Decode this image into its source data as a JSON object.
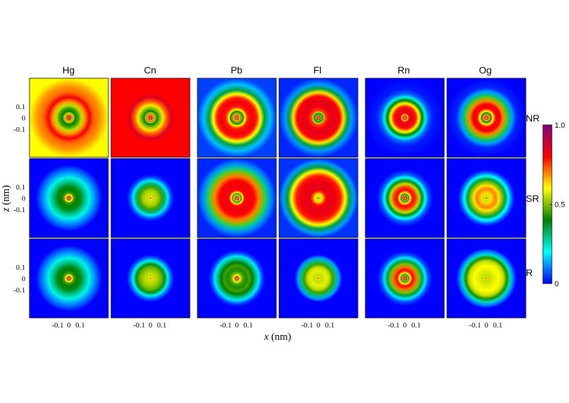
{
  "chart_data": {
    "type": "heatmap",
    "colormap": [
      "#0000ff",
      "#00ffff",
      "#008000",
      "#ffff00",
      "#ff0000",
      "#800080"
    ],
    "columns": [
      "Hg",
      "Cn",
      "Pb",
      "Fl",
      "Rn",
      "Og"
    ],
    "rows": [
      "NR",
      "SR",
      "R"
    ],
    "xlabel_var": "x",
    "xlabel_unit": " (nm)",
    "ylabel_var": "z",
    "ylabel_unit": " (nm)",
    "x_ticks": [
      "-0.1",
      "0",
      "0.1"
    ],
    "y_ticks": [
      "0.1",
      "0",
      "-0.1"
    ],
    "x_tick_values": [
      -0.1,
      0,
      0.1
    ],
    "y_tick_values": [
      0.1,
      0,
      -0.1
    ],
    "xlim": [
      -0.35,
      0.35
    ],
    "ylim": [
      -0.35,
      0.35
    ],
    "colorbar": {
      "min": 0,
      "max": 1,
      "ticks": [
        "1.0",
        "0.5",
        "0"
      ],
      "tick_values": [
        1.0,
        0.5,
        0
      ]
    },
    "panels": [
      {
        "element": "Hg",
        "method": "NR",
        "profile": [
          [
            0,
            0.55
          ],
          [
            0.01,
            0.8
          ],
          [
            0.015,
            0.7
          ],
          [
            0.025,
            0.95
          ],
          [
            0.035,
            0.55
          ],
          [
            0.045,
            0.7
          ],
          [
            0.06,
            0.55
          ],
          [
            0.08,
            0.4
          ],
          [
            0.12,
            0.45
          ],
          [
            0.16,
            0.55
          ],
          [
            0.2,
            0.68
          ],
          [
            0.26,
            0.82
          ],
          [
            0.32,
            0.72
          ],
          [
            0.4,
            0.68
          ],
          [
            0.5,
            0.6
          ]
        ]
      },
      {
        "element": "Cn",
        "method": "NR",
        "profile": [
          [
            0,
            0.55
          ],
          [
            0.01,
            0.82
          ],
          [
            0.015,
            0.7
          ],
          [
            0.025,
            0.95
          ],
          [
            0.035,
            0.6
          ],
          [
            0.045,
            0.75
          ],
          [
            0.06,
            0.55
          ],
          [
            0.08,
            0.4
          ],
          [
            0.12,
            0.5
          ],
          [
            0.16,
            0.62
          ],
          [
            0.2,
            0.72
          ],
          [
            0.26,
            0.85
          ],
          [
            0.32,
            0.8
          ],
          [
            0.4,
            0.8
          ],
          [
            0.5,
            0.8
          ]
        ]
      },
      {
        "element": "Pb",
        "method": "NR",
        "profile": [
          [
            0,
            0.55
          ],
          [
            0.01,
            0.8
          ],
          [
            0.015,
            0.65
          ],
          [
            0.025,
            0.95
          ],
          [
            0.035,
            0.6
          ],
          [
            0.045,
            0.72
          ],
          [
            0.06,
            0.5
          ],
          [
            0.08,
            0.4
          ],
          [
            0.1,
            0.6
          ],
          [
            0.14,
            0.78
          ],
          [
            0.2,
            0.82
          ],
          [
            0.25,
            0.78
          ],
          [
            0.3,
            0.6
          ],
          [
            0.35,
            0.35
          ],
          [
            0.42,
            0.15
          ],
          [
            0.5,
            0.05
          ]
        ]
      },
      {
        "element": "Fl",
        "method": "NR",
        "profile": [
          [
            0,
            0.55
          ],
          [
            0.01,
            0.8
          ],
          [
            0.015,
            0.65
          ],
          [
            0.025,
            0.95
          ],
          [
            0.035,
            0.55
          ],
          [
            0.045,
            0.42
          ],
          [
            0.055,
            0.35
          ],
          [
            0.07,
            0.55
          ],
          [
            0.09,
            0.75
          ],
          [
            0.14,
            0.82
          ],
          [
            0.2,
            0.84
          ],
          [
            0.27,
            0.8
          ],
          [
            0.32,
            0.62
          ],
          [
            0.37,
            0.35
          ],
          [
            0.42,
            0.12
          ],
          [
            0.5,
            0.03
          ]
        ]
      },
      {
        "element": "Rn",
        "method": "NR",
        "profile": [
          [
            0,
            0.55
          ],
          [
            0.01,
            0.8
          ],
          [
            0.015,
            0.65
          ],
          [
            0.025,
            0.95
          ],
          [
            0.035,
            0.6
          ],
          [
            0.045,
            0.72
          ],
          [
            0.06,
            0.82
          ],
          [
            0.1,
            0.84
          ],
          [
            0.14,
            0.78
          ],
          [
            0.18,
            0.6
          ],
          [
            0.22,
            0.4
          ],
          [
            0.26,
            0.22
          ],
          [
            0.3,
            0.08
          ],
          [
            0.36,
            0.02
          ],
          [
            0.5,
            0.0
          ]
        ]
      },
      {
        "element": "Og",
        "method": "NR",
        "profile": [
          [
            0,
            0.55
          ],
          [
            0.01,
            0.8
          ],
          [
            0.015,
            0.65
          ],
          [
            0.025,
            0.95
          ],
          [
            0.035,
            0.6
          ],
          [
            0.045,
            0.75
          ],
          [
            0.055,
            0.45
          ],
          [
            0.065,
            0.35
          ],
          [
            0.08,
            0.6
          ],
          [
            0.12,
            0.8
          ],
          [
            0.17,
            0.82
          ],
          [
            0.21,
            0.7
          ],
          [
            0.25,
            0.5
          ],
          [
            0.29,
            0.3
          ],
          [
            0.33,
            0.12
          ],
          [
            0.38,
            0.03
          ],
          [
            0.5,
            0.0
          ]
        ]
      },
      {
        "element": "Hg",
        "method": "SR",
        "profile": [
          [
            0,
            0.55
          ],
          [
            0.01,
            0.8
          ],
          [
            0.015,
            0.65
          ],
          [
            0.025,
            0.95
          ],
          [
            0.035,
            0.6
          ],
          [
            0.045,
            0.62
          ],
          [
            0.06,
            0.45
          ],
          [
            0.1,
            0.4
          ],
          [
            0.15,
            0.38
          ],
          [
            0.2,
            0.3
          ],
          [
            0.26,
            0.22
          ],
          [
            0.32,
            0.12
          ],
          [
            0.38,
            0.05
          ],
          [
            0.42,
            0.0
          ],
          [
            0.5,
            0.0
          ]
        ]
      },
      {
        "element": "Cn",
        "method": "SR",
        "profile": [
          [
            0,
            0.55
          ],
          [
            0.01,
            0.75
          ],
          [
            0.018,
            0.6
          ],
          [
            0.03,
            0.55
          ],
          [
            0.06,
            0.55
          ],
          [
            0.1,
            0.52
          ],
          [
            0.14,
            0.45
          ],
          [
            0.18,
            0.32
          ],
          [
            0.22,
            0.18
          ],
          [
            0.26,
            0.06
          ],
          [
            0.3,
            0.0
          ],
          [
            0.5,
            0.0
          ]
        ]
      },
      {
        "element": "Pb",
        "method": "SR",
        "profile": [
          [
            0,
            0.55
          ],
          [
            0.01,
            0.8
          ],
          [
            0.015,
            0.65
          ],
          [
            0.025,
            0.95
          ],
          [
            0.035,
            0.6
          ],
          [
            0.045,
            0.5
          ],
          [
            0.055,
            0.38
          ],
          [
            0.07,
            0.6
          ],
          [
            0.1,
            0.8
          ],
          [
            0.16,
            0.82
          ],
          [
            0.22,
            0.8
          ],
          [
            0.28,
            0.7
          ],
          [
            0.33,
            0.5
          ],
          [
            0.38,
            0.28
          ],
          [
            0.44,
            0.1
          ],
          [
            0.5,
            0.03
          ]
        ]
      },
      {
        "element": "Fl",
        "method": "SR",
        "profile": [
          [
            0,
            0.55
          ],
          [
            0.01,
            0.75
          ],
          [
            0.018,
            0.6
          ],
          [
            0.03,
            0.55
          ],
          [
            0.05,
            0.58
          ],
          [
            0.07,
            0.72
          ],
          [
            0.1,
            0.82
          ],
          [
            0.16,
            0.84
          ],
          [
            0.22,
            0.82
          ],
          [
            0.28,
            0.78
          ],
          [
            0.34,
            0.6
          ],
          [
            0.39,
            0.35
          ],
          [
            0.45,
            0.12
          ],
          [
            0.5,
            0.04
          ]
        ]
      },
      {
        "element": "Rn",
        "method": "SR",
        "profile": [
          [
            0,
            0.55
          ],
          [
            0.01,
            0.8
          ],
          [
            0.015,
            0.65
          ],
          [
            0.025,
            0.95
          ],
          [
            0.035,
            0.55
          ],
          [
            0.05,
            0.4
          ],
          [
            0.065,
            0.6
          ],
          [
            0.1,
            0.8
          ],
          [
            0.14,
            0.75
          ],
          [
            0.18,
            0.55
          ],
          [
            0.22,
            0.38
          ],
          [
            0.26,
            0.2
          ],
          [
            0.3,
            0.07
          ],
          [
            0.36,
            0.0
          ],
          [
            0.5,
            0.0
          ]
        ]
      },
      {
        "element": "Og",
        "method": "SR",
        "profile": [
          [
            0,
            0.55
          ],
          [
            0.01,
            0.75
          ],
          [
            0.018,
            0.6
          ],
          [
            0.03,
            0.55
          ],
          [
            0.05,
            0.58
          ],
          [
            0.08,
            0.65
          ],
          [
            0.12,
            0.7
          ],
          [
            0.16,
            0.62
          ],
          [
            0.2,
            0.5
          ],
          [
            0.24,
            0.35
          ],
          [
            0.28,
            0.2
          ],
          [
            0.32,
            0.08
          ],
          [
            0.36,
            0.0
          ],
          [
            0.5,
            0.0
          ]
        ]
      },
      {
        "element": "Hg",
        "method": "R",
        "profile": [
          [
            0,
            0.55
          ],
          [
            0.01,
            0.8
          ],
          [
            0.015,
            0.65
          ],
          [
            0.025,
            0.95
          ],
          [
            0.035,
            0.6
          ],
          [
            0.045,
            0.62
          ],
          [
            0.06,
            0.45
          ],
          [
            0.1,
            0.4
          ],
          [
            0.15,
            0.38
          ],
          [
            0.2,
            0.3
          ],
          [
            0.26,
            0.22
          ],
          [
            0.32,
            0.12
          ],
          [
            0.38,
            0.05
          ],
          [
            0.42,
            0.0
          ],
          [
            0.5,
            0.0
          ]
        ]
      },
      {
        "element": "Cn",
        "method": "R",
        "profile": [
          [
            0,
            0.55
          ],
          [
            0.01,
            0.72
          ],
          [
            0.018,
            0.6
          ],
          [
            0.03,
            0.55
          ],
          [
            0.06,
            0.55
          ],
          [
            0.1,
            0.52
          ],
          [
            0.14,
            0.48
          ],
          [
            0.18,
            0.38
          ],
          [
            0.22,
            0.22
          ],
          [
            0.26,
            0.08
          ],
          [
            0.3,
            0.0
          ],
          [
            0.5,
            0.0
          ]
        ]
      },
      {
        "element": "Pb",
        "method": "R",
        "profile": [
          [
            0,
            0.55
          ],
          [
            0.01,
            0.8
          ],
          [
            0.015,
            0.65
          ],
          [
            0.025,
            0.95
          ],
          [
            0.035,
            0.6
          ],
          [
            0.05,
            0.55
          ],
          [
            0.08,
            0.45
          ],
          [
            0.12,
            0.42
          ],
          [
            0.16,
            0.45
          ],
          [
            0.2,
            0.4
          ],
          [
            0.24,
            0.3
          ],
          [
            0.28,
            0.18
          ],
          [
            0.32,
            0.06
          ],
          [
            0.36,
            0.0
          ],
          [
            0.5,
            0.0
          ]
        ]
      },
      {
        "element": "Fl",
        "method": "R",
        "profile": [
          [
            0,
            0.55
          ],
          [
            0.01,
            0.72
          ],
          [
            0.018,
            0.6
          ],
          [
            0.03,
            0.55
          ],
          [
            0.06,
            0.56
          ],
          [
            0.1,
            0.58
          ],
          [
            0.14,
            0.55
          ],
          [
            0.18,
            0.45
          ],
          [
            0.22,
            0.3
          ],
          [
            0.26,
            0.12
          ],
          [
            0.3,
            0.0
          ],
          [
            0.5,
            0.0
          ]
        ]
      },
      {
        "element": "Rn",
        "method": "R",
        "profile": [
          [
            0,
            0.55
          ],
          [
            0.01,
            0.8
          ],
          [
            0.015,
            0.65
          ],
          [
            0.025,
            0.95
          ],
          [
            0.035,
            0.55
          ],
          [
            0.05,
            0.38
          ],
          [
            0.065,
            0.6
          ],
          [
            0.1,
            0.8
          ],
          [
            0.14,
            0.72
          ],
          [
            0.18,
            0.5
          ],
          [
            0.22,
            0.35
          ],
          [
            0.26,
            0.18
          ],
          [
            0.3,
            0.06
          ],
          [
            0.35,
            0.0
          ],
          [
            0.5,
            0.0
          ]
        ]
      },
      {
        "element": "Og",
        "method": "R",
        "profile": [
          [
            0,
            0.55
          ],
          [
            0.01,
            0.72
          ],
          [
            0.018,
            0.6
          ],
          [
            0.03,
            0.55
          ],
          [
            0.06,
            0.56
          ],
          [
            0.1,
            0.58
          ],
          [
            0.16,
            0.6
          ],
          [
            0.22,
            0.55
          ],
          [
            0.26,
            0.42
          ],
          [
            0.3,
            0.25
          ],
          [
            0.34,
            0.1
          ],
          [
            0.38,
            0.0
          ],
          [
            0.5,
            0.0
          ]
        ]
      }
    ]
  }
}
